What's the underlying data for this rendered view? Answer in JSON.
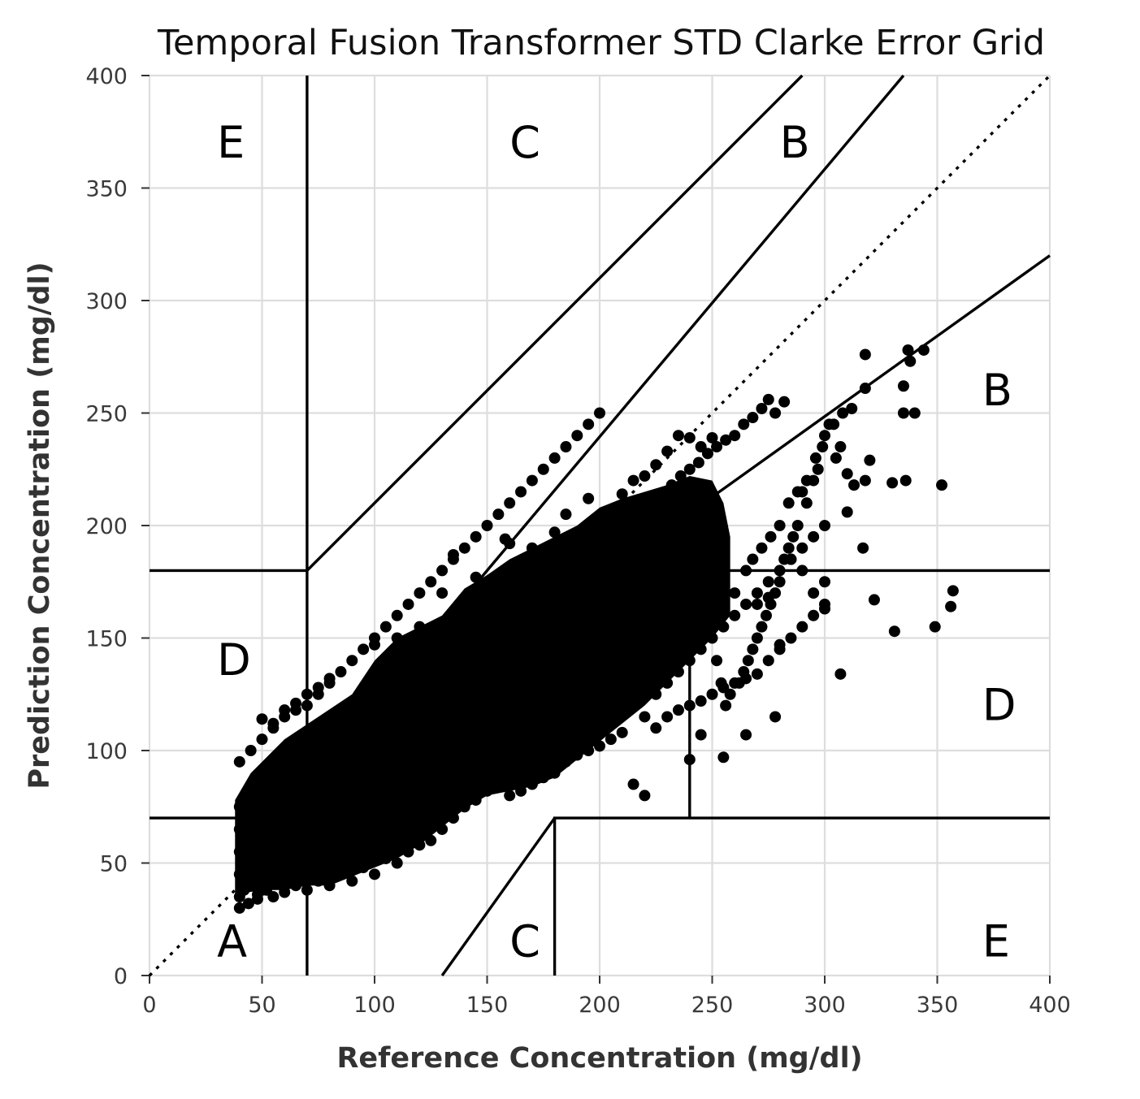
{
  "chart_data": {
    "type": "scatter",
    "title": "Temporal Fusion Transformer STD Clarke Error Grid",
    "xlabel": "Reference Concentration (mg/dl)",
    "ylabel": "Prediction Concentration (mg/dl)",
    "xlim": [
      0,
      400
    ],
    "ylim": [
      0,
      400
    ],
    "xticks": [
      0,
      50,
      100,
      150,
      200,
      250,
      300,
      350,
      400
    ],
    "yticks": [
      0,
      50,
      100,
      150,
      200,
      250,
      300,
      350,
      400
    ],
    "grid": true,
    "marker_color": "#000000",
    "zone_labels": [
      {
        "text": "E",
        "x": 30,
        "y": 370
      },
      {
        "text": "C",
        "x": 160,
        "y": 370
      },
      {
        "text": "B",
        "x": 280,
        "y": 370
      },
      {
        "text": "B",
        "x": 370,
        "y": 260
      },
      {
        "text": "D",
        "x": 30,
        "y": 140
      },
      {
        "text": "D",
        "x": 370,
        "y": 120
      },
      {
        "text": "A",
        "x": 30,
        "y": 15
      },
      {
        "text": "C",
        "x": 160,
        "y": 15
      },
      {
        "text": "E",
        "x": 370,
        "y": 15
      }
    ],
    "zone_boundaries": [
      {
        "style": "dotted",
        "points": [
          [
            0,
            0
          ],
          [
            400,
            400
          ]
        ]
      },
      {
        "style": "solid",
        "points": [
          [
            70,
            0
          ],
          [
            70,
            400
          ]
        ]
      },
      {
        "style": "solid",
        "points": [
          [
            0,
            180
          ],
          [
            70,
            180
          ],
          [
            290,
            400
          ]
        ]
      },
      {
        "style": "solid",
        "points": [
          [
            0,
            70
          ],
          [
            70,
            70
          ]
        ]
      },
      {
        "style": "solid",
        "points": [
          [
            70,
            84
          ],
          [
            400,
            320
          ]
        ]
      },
      {
        "style": "solid",
        "points": [
          [
            58.3,
            70
          ],
          [
            70,
            84
          ]
        ]
      },
      {
        "style": "solid",
        "points": [
          [
            70,
            56
          ],
          [
            70,
            56
          ]
        ]
      },
      {
        "style": "solid",
        "points": [
          [
            58.3,
            70
          ],
          [
            58.3,
            70
          ]
        ]
      },
      {
        "style": "solid",
        "points": [
          [
            130,
            0
          ],
          [
            180,
            70
          ]
        ]
      },
      {
        "style": "solid",
        "points": [
          [
            180,
            0
          ],
          [
            180,
            70
          ],
          [
            400,
            70
          ]
        ]
      },
      {
        "style": "solid",
        "points": [
          [
            240,
            70
          ],
          [
            240,
            180
          ],
          [
            400,
            180
          ]
        ]
      },
      {
        "style": "solid",
        "points": [
          [
            58.33,
            70
          ],
          [
            150,
            180
          ],
          [
            335,
            400
          ]
        ]
      }
    ],
    "points_dense_core": [
      [
        40,
        45
      ],
      [
        40,
        55
      ],
      [
        40,
        65
      ],
      [
        40,
        75
      ],
      [
        45,
        42
      ],
      [
        45,
        60
      ],
      [
        48,
        80
      ],
      [
        50,
        50
      ],
      [
        55,
        45
      ],
      [
        55,
        70
      ],
      [
        58,
        85
      ],
      [
        60,
        55
      ],
      [
        62,
        95
      ],
      [
        65,
        60
      ],
      [
        68,
        80
      ],
      [
        70,
        65
      ],
      [
        72,
        100
      ],
      [
        75,
        70
      ],
      [
        78,
        90
      ],
      [
        80,
        75
      ],
      [
        82,
        110
      ],
      [
        85,
        60
      ],
      [
        88,
        95
      ],
      [
        90,
        80
      ],
      [
        92,
        115
      ],
      [
        95,
        85
      ],
      [
        98,
        100
      ],
      [
        100,
        90
      ],
      [
        102,
        125
      ],
      [
        105,
        105
      ],
      [
        108,
        95
      ],
      [
        110,
        110
      ],
      [
        112,
        130
      ],
      [
        115,
        100
      ],
      [
        118,
        120
      ],
      [
        120,
        115
      ],
      [
        122,
        140
      ],
      [
        125,
        110
      ],
      [
        128,
        130
      ],
      [
        130,
        120
      ],
      [
        132,
        150
      ],
      [
        135,
        125
      ],
      [
        138,
        140
      ],
      [
        140,
        130
      ],
      [
        142,
        160
      ],
      [
        145,
        135
      ],
      [
        148,
        150
      ],
      [
        150,
        140
      ],
      [
        152,
        170
      ],
      [
        155,
        145
      ],
      [
        158,
        160
      ],
      [
        160,
        150
      ],
      [
        162,
        180
      ],
      [
        165,
        140
      ],
      [
        168,
        165
      ],
      [
        170,
        155
      ],
      [
        172,
        185
      ],
      [
        175,
        150
      ],
      [
        178,
        170
      ],
      [
        180,
        160
      ],
      [
        182,
        190
      ],
      [
        185,
        165
      ],
      [
        188,
        180
      ],
      [
        190,
        170
      ],
      [
        192,
        195
      ],
      [
        195,
        175
      ],
      [
        198,
        190
      ],
      [
        200,
        180
      ],
      [
        202,
        200
      ],
      [
        205,
        170
      ],
      [
        208,
        185
      ],
      [
        210,
        175
      ],
      [
        212,
        205
      ],
      [
        215,
        165
      ],
      [
        218,
        195
      ],
      [
        220,
        180
      ],
      [
        222,
        210
      ],
      [
        225,
        170
      ],
      [
        228,
        190
      ],
      [
        230,
        175
      ],
      [
        232,
        205
      ],
      [
        235,
        165
      ],
      [
        238,
        185
      ],
      [
        240,
        170
      ],
      [
        242,
        215
      ],
      [
        245,
        160
      ],
      [
        248,
        195
      ],
      [
        250,
        180
      ]
    ],
    "points": [
      [
        40,
        35
      ],
      [
        42,
        38
      ],
      [
        45,
        40
      ],
      [
        48,
        36
      ],
      [
        50,
        38
      ],
      [
        55,
        35
      ],
      [
        60,
        37
      ],
      [
        65,
        40
      ],
      [
        70,
        38
      ],
      [
        75,
        42
      ],
      [
        80,
        40
      ],
      [
        85,
        45
      ],
      [
        90,
        42
      ],
      [
        95,
        48
      ],
      [
        100,
        45
      ],
      [
        105,
        52
      ],
      [
        110,
        50
      ],
      [
        115,
        55
      ],
      [
        120,
        58
      ],
      [
        125,
        60
      ],
      [
        130,
        65
      ],
      [
        135,
        70
      ],
      [
        140,
        75
      ],
      [
        145,
        78
      ],
      [
        150,
        82
      ],
      [
        155,
        85
      ],
      [
        160,
        88
      ],
      [
        165,
        92
      ],
      [
        170,
        95
      ],
      [
        175,
        98
      ],
      [
        180,
        100
      ],
      [
        185,
        105
      ],
      [
        190,
        108
      ],
      [
        195,
        110
      ],
      [
        200,
        112
      ],
      [
        205,
        115
      ],
      [
        210,
        118
      ],
      [
        215,
        120
      ],
      [
        220,
        115
      ],
      [
        225,
        125
      ],
      [
        230,
        130
      ],
      [
        235,
        135
      ],
      [
        240,
        140
      ],
      [
        245,
        145
      ],
      [
        250,
        150
      ],
      [
        255,
        155
      ],
      [
        260,
        160
      ],
      [
        265,
        165
      ],
      [
        270,
        170
      ],
      [
        275,
        175
      ],
      [
        280,
        180
      ],
      [
        285,
        185
      ],
      [
        290,
        190
      ],
      [
        295,
        195
      ],
      [
        300,
        200
      ],
      [
        40,
        95
      ],
      [
        45,
        100
      ],
      [
        50,
        105
      ],
      [
        55,
        110
      ],
      [
        60,
        115
      ],
      [
        65,
        118
      ],
      [
        70,
        120
      ],
      [
        75,
        125
      ],
      [
        80,
        130
      ],
      [
        85,
        135
      ],
      [
        90,
        140
      ],
      [
        95,
        145
      ],
      [
        100,
        150
      ],
      [
        105,
        155
      ],
      [
        110,
        160
      ],
      [
        115,
        165
      ],
      [
        120,
        170
      ],
      [
        125,
        175
      ],
      [
        130,
        180
      ],
      [
        135,
        185
      ],
      [
        140,
        190
      ],
      [
        145,
        195
      ],
      [
        150,
        200
      ],
      [
        155,
        205
      ],
      [
        160,
        210
      ],
      [
        165,
        215
      ],
      [
        170,
        220
      ],
      [
        175,
        225
      ],
      [
        180,
        230
      ],
      [
        185,
        235
      ],
      [
        190,
        240
      ],
      [
        195,
        245
      ],
      [
        200,
        250
      ],
      [
        160,
        80
      ],
      [
        165,
        82
      ],
      [
        170,
        85
      ],
      [
        175,
        88
      ],
      [
        180,
        90
      ],
      [
        185,
        95
      ],
      [
        190,
        98
      ],
      [
        195,
        100
      ],
      [
        200,
        102
      ],
      [
        205,
        105
      ],
      [
        210,
        108
      ],
      [
        215,
        85
      ],
      [
        220,
        80
      ],
      [
        225,
        110
      ],
      [
        230,
        115
      ],
      [
        235,
        118
      ],
      [
        240,
        120
      ],
      [
        245,
        122
      ],
      [
        250,
        125
      ],
      [
        255,
        128
      ],
      [
        260,
        130
      ],
      [
        265,
        132
      ],
      [
        270,
        134
      ],
      [
        275,
        140
      ],
      [
        280,
        145
      ],
      [
        285,
        150
      ],
      [
        290,
        155
      ],
      [
        295,
        160
      ],
      [
        300,
        165
      ],
      [
        240,
        96
      ],
      [
        245,
        107
      ],
      [
        255,
        97
      ],
      [
        265,
        107
      ],
      [
        278,
        115
      ],
      [
        307,
        134
      ],
      [
        300,
        163
      ],
      [
        318,
        276
      ],
      [
        318,
        261
      ],
      [
        337,
        278
      ],
      [
        338,
        273
      ],
      [
        344,
        278
      ],
      [
        335,
        262
      ],
      [
        335,
        250
      ],
      [
        340,
        250
      ],
      [
        352,
        218
      ],
      [
        336,
        220
      ],
      [
        330,
        219
      ],
      [
        320,
        229
      ],
      [
        318,
        220
      ],
      [
        313,
        218
      ],
      [
        310,
        223
      ],
      [
        307,
        235
      ],
      [
        305,
        230
      ],
      [
        302,
        245
      ],
      [
        299,
        235
      ],
      [
        297,
        225
      ],
      [
        295,
        220
      ],
      [
        292,
        210
      ],
      [
        290,
        215
      ],
      [
        288,
        200
      ],
      [
        286,
        195
      ],
      [
        284,
        190
      ],
      [
        282,
        185
      ],
      [
        280,
        175
      ],
      [
        278,
        170
      ],
      [
        276,
        165
      ],
      [
        274,
        160
      ],
      [
        272,
        155
      ],
      [
        270,
        150
      ],
      [
        268,
        145
      ],
      [
        266,
        140
      ],
      [
        264,
        135
      ],
      [
        262,
        130
      ],
      [
        258,
        125
      ],
      [
        256,
        120
      ],
      [
        254,
        130
      ],
      [
        252,
        140
      ],
      [
        310,
        206
      ],
      [
        317,
        190
      ],
      [
        322,
        167
      ],
      [
        331,
        153
      ],
      [
        349,
        155
      ],
      [
        356,
        164
      ],
      [
        357,
        171
      ],
      [
        300,
        175
      ],
      [
        295,
        170
      ],
      [
        290,
        180
      ],
      [
        285,
        185
      ],
      [
        280,
        147
      ],
      [
        275,
        168
      ],
      [
        270,
        165
      ],
      [
        260,
        170
      ],
      [
        265,
        180
      ],
      [
        268,
        185
      ],
      [
        272,
        190
      ],
      [
        276,
        195
      ],
      [
        280,
        200
      ],
      [
        284,
        210
      ],
      [
        288,
        215
      ],
      [
        292,
        220
      ],
      [
        296,
        230
      ],
      [
        300,
        240
      ],
      [
        304,
        245
      ],
      [
        308,
        250
      ],
      [
        312,
        252
      ],
      [
        282,
        255
      ],
      [
        278,
        250
      ],
      [
        275,
        256
      ],
      [
        272,
        252
      ],
      [
        268,
        248
      ],
      [
        264,
        245
      ],
      [
        260,
        240
      ],
      [
        256,
        238
      ],
      [
        252,
        235
      ],
      [
        248,
        232
      ],
      [
        244,
        228
      ],
      [
        240,
        225
      ],
      [
        236,
        222
      ],
      [
        232,
        218
      ],
      [
        228,
        214
      ],
      [
        224,
        210
      ],
      [
        220,
        206
      ],
      [
        216,
        202
      ],
      [
        212,
        198
      ],
      [
        208,
        194
      ],
      [
        204,
        190
      ],
      [
        200,
        186
      ],
      [
        196,
        182
      ],
      [
        192,
        178
      ],
      [
        188,
        174
      ],
      [
        184,
        170
      ],
      [
        180,
        166
      ],
      [
        176,
        162
      ],
      [
        172,
        158
      ],
      [
        168,
        154
      ],
      [
        164,
        150
      ],
      [
        160,
        146
      ],
      [
        156,
        142
      ],
      [
        152,
        138
      ],
      [
        148,
        134
      ],
      [
        144,
        130
      ],
      [
        140,
        126
      ],
      [
        136,
        122
      ],
      [
        132,
        118
      ],
      [
        128,
        114
      ],
      [
        124,
        110
      ],
      [
        120,
        106
      ],
      [
        116,
        102
      ],
      [
        112,
        98
      ],
      [
        108,
        94
      ],
      [
        104,
        90
      ],
      [
        100,
        86
      ],
      [
        96,
        82
      ],
      [
        92,
        78
      ],
      [
        88,
        74
      ],
      [
        84,
        70
      ],
      [
        80,
        66
      ],
      [
        76,
        62
      ],
      [
        72,
        58
      ],
      [
        68,
        54
      ],
      [
        64,
        50
      ],
      [
        60,
        46
      ],
      [
        56,
        42
      ],
      [
        52,
        38
      ],
      [
        48,
        34
      ],
      [
        44,
        32
      ],
      [
        40,
        30
      ],
      [
        50,
        114
      ],
      [
        55,
        112
      ],
      [
        60,
        118
      ],
      [
        65,
        121
      ],
      [
        70,
        125
      ],
      [
        75,
        128
      ],
      [
        80,
        132
      ],
      [
        100,
        147
      ],
      [
        110,
        150
      ],
      [
        120,
        155
      ],
      [
        130,
        170
      ],
      [
        135,
        187
      ],
      [
        145,
        177
      ],
      [
        158,
        194
      ],
      [
        160,
        192
      ],
      [
        170,
        190
      ],
      [
        180,
        197
      ],
      [
        185,
        205
      ],
      [
        195,
        212
      ],
      [
        210,
        214
      ],
      [
        215,
        220
      ],
      [
        220,
        222
      ],
      [
        225,
        227
      ],
      [
        230,
        233
      ],
      [
        235,
        240
      ],
      [
        240,
        239
      ],
      [
        245,
        235
      ],
      [
        250,
        239
      ]
    ]
  }
}
